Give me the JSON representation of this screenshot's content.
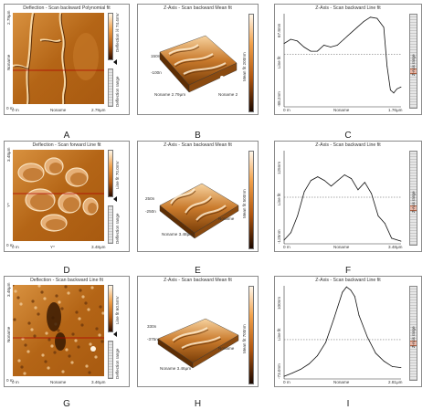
{
  "rows": [
    {
      "afm": {
        "title": "Deflection - Scan backward   Polynomial fit",
        "y_top": "2.79μm",
        "y_bottom": "0 m",
        "x_left": "0 m",
        "x_mid": "Noname",
        "x_right": "2.79μm",
        "y_side": "Noname",
        "bar_label": "Deflection ℍ 74.4mV",
        "range_label": "Deflection range",
        "panel_label": "A"
      },
      "view3d": {
        "title": "Z-Axis - Scan backward   Mean fit",
        "z_top": "150n",
        "z_bottom": "-100n",
        "x_axis": "Noname 2.79μm",
        "y_axis": "Noname 2",
        "bar_label": "Mean fit 200nm",
        "panel_label": "B"
      },
      "profile": {
        "title": "Z-Axis - Scan backward   Line fit",
        "y_top": "67.8nm",
        "y_bottom": "-88.2nm",
        "y_mid": "Line fit",
        "x_left": "0 m",
        "x_mid": "Noname",
        "x_right": "1.76μm",
        "range_label": "Z-Axis range",
        "panel_label": "C"
      }
    },
    {
      "afm": {
        "title": "Deflection - Scan forward   Line fit",
        "y_top": "3.48μm",
        "y_bottom": "0 m",
        "x_left": "0 m",
        "x_mid": "Y*",
        "x_right": "3.48μm",
        "y_side": "Y*",
        "bar_label": "Line fit 70.0mV",
        "range_label": "Deflection range",
        "panel_label": "D"
      },
      "view3d": {
        "title": "Z-Axis - Scan backward   Mean fit",
        "z_top": "250n",
        "z_bottom": "-250n",
        "x_axis": "Noname 3.48μm",
        "y_axis": "Noname",
        "bar_label": "Mean fit 500nm",
        "panel_label": "E"
      },
      "profile": {
        "title": "Z-Axis - Scan backward   Line fit",
        "y_top": "125nm",
        "y_bottom": "-125nm",
        "y_mid": "Line fit",
        "x_left": "0 m",
        "x_mid": "Noname",
        "x_right": "3.48μm",
        "range_label": "Z-Axis range",
        "panel_label": "F"
      }
    },
    {
      "afm": {
        "title": "Deflection - Scan backward   Line fit",
        "y_top": "3.46μm",
        "y_bottom": "0 m",
        "x_left": "0 m",
        "x_mid": "Noname",
        "x_right": "3.46μm",
        "y_side": "Noname",
        "bar_label": "Line fit 60.5mV",
        "range_label": "Deflection range",
        "panel_label": "G"
      },
      "view3d": {
        "title": "Z-Axis - Scan backward   Mean fit",
        "z_top": "330n",
        "z_bottom": "-375n",
        "x_axis": "Noname 3.46μm",
        "y_axis": "Noname",
        "bar_label": "Mean fit 700nm",
        "panel_label": "H"
      },
      "profile": {
        "title": "Z-Axis - Scan backward   Line fit",
        "y_top": "100nm",
        "y_bottom": "-73.0nm",
        "y_mid": "Line fit",
        "x_left": "0 m",
        "x_mid": "Noname",
        "x_right": "2.81μm",
        "range_label": "Z-Axis range",
        "panel_label": "I"
      }
    }
  ],
  "chart_data": [
    {
      "type": "line",
      "title": "Z-Axis - Scan backward   Line fit",
      "xlabel": "Noname",
      "ylabel": "Line fit",
      "x_unit": "μm",
      "xlim": [
        0,
        1.76
      ],
      "ylim": [
        -88.2,
        67.8
      ],
      "x": [
        0,
        0.1,
        0.2,
        0.3,
        0.4,
        0.5,
        0.6,
        0.7,
        0.8,
        0.9,
        1.0,
        1.1,
        1.2,
        1.3,
        1.4,
        1.5,
        1.55,
        1.6,
        1.65,
        1.7,
        1.76
      ],
      "y": [
        18,
        25,
        22,
        12,
        5,
        5,
        15,
        12,
        15,
        25,
        35,
        45,
        55,
        62,
        60,
        45,
        -20,
        -60,
        -65,
        -58,
        -55
      ]
    },
    {
      "type": "line",
      "title": "Z-Axis - Scan backward   Line fit",
      "xlabel": "Noname",
      "ylabel": "Line fit",
      "x_unit": "μm",
      "xlim": [
        0,
        3.48
      ],
      "ylim": [
        -125,
        125
      ],
      "x": [
        0,
        0.2,
        0.4,
        0.6,
        0.8,
        1.0,
        1.2,
        1.4,
        1.6,
        1.8,
        2.0,
        2.2,
        2.4,
        2.6,
        2.8,
        3.0,
        3.2,
        3.48
      ],
      "y": [
        -115,
        -95,
        -50,
        15,
        45,
        55,
        45,
        30,
        45,
        60,
        50,
        20,
        40,
        10,
        -50,
        -70,
        -110,
        -118
      ]
    },
    {
      "type": "line",
      "title": "Z-Axis - Scan backward   Line fit",
      "xlabel": "Noname",
      "ylabel": "Line fit",
      "x_unit": "μm",
      "xlim": [
        0,
        2.81
      ],
      "ylim": [
        -73.0,
        100
      ],
      "x": [
        0,
        0.2,
        0.4,
        0.6,
        0.8,
        1.0,
        1.2,
        1.4,
        1.5,
        1.6,
        1.7,
        1.8,
        2.0,
        2.2,
        2.4,
        2.6,
        2.81
      ],
      "y": [
        -68,
        -62,
        -55,
        -45,
        -30,
        -5,
        40,
        88,
        98,
        92,
        80,
        45,
        5,
        -25,
        -40,
        -50,
        -52
      ]
    }
  ]
}
